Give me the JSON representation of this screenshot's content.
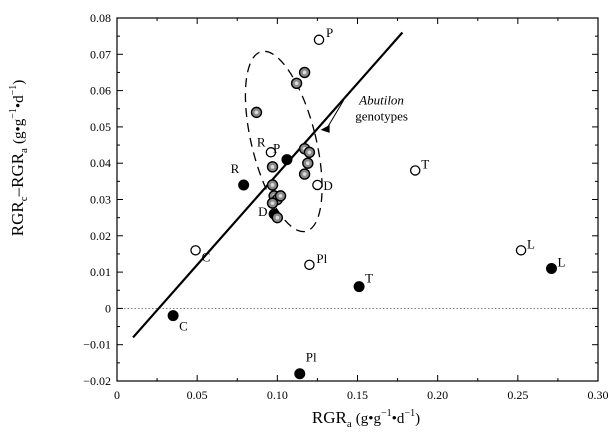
{
  "chart_data": {
    "type": "scatter",
    "xlabel": "RGR",
    "xlabel_sub": "a",
    "xlabel_units": "(g•g",
    "xlabel_units_sup": "−1",
    "xlabel_units_mid": "•d",
    "xlabel_units_sup2": "−1",
    "xlabel_units_end": ")",
    "ylabel_main": "RGR",
    "ylabel_sub1": "c",
    "ylabel_mid": "–RGR",
    "ylabel_sub2": "a",
    "ylabel_units": "(g•g",
    "ylabel_units_sup": "−1",
    "ylabel_units_mid": "•d",
    "ylabel_units_sup2": "−1",
    "ylabel_units_end": ")",
    "xlim": [
      0,
      0.3
    ],
    "ylim": [
      -0.02,
      0.08
    ],
    "x_ticks": [
      0,
      0.05,
      0.1,
      0.15,
      0.2,
      0.25,
      0.3
    ],
    "x_tick_labels": [
      "0",
      "0.05",
      "0.10",
      "0.15",
      "0.20",
      "0.25",
      "0.30"
    ],
    "y_ticks": [
      -0.02,
      -0.01,
      0,
      0.01,
      0.02,
      0.03,
      0.04,
      0.05,
      0.06,
      0.07,
      0.08
    ],
    "y_tick_labels": [
      "−0.02",
      "−0.01",
      "0",
      "0.01",
      "0.02",
      "0.03",
      "0.04",
      "0.05",
      "0.06",
      "0.07",
      "0.08"
    ],
    "zero_line": true,
    "regression_line": {
      "x": [
        0.01,
        0.178
      ],
      "y": [
        -0.008,
        0.076
      ]
    },
    "series": [
      {
        "marker": "open-circle",
        "points": [
          {
            "x": 0.049,
            "y": 0.016,
            "label": "C"
          },
          {
            "x": 0.096,
            "y": 0.043,
            "label": "R"
          },
          {
            "x": 0.126,
            "y": 0.074,
            "label": "P"
          },
          {
            "x": 0.125,
            "y": 0.034,
            "label": "D"
          },
          {
            "x": 0.12,
            "y": 0.012,
            "label": "Pl"
          },
          {
            "x": 0.186,
            "y": 0.038,
            "label": "T"
          },
          {
            "x": 0.252,
            "y": 0.016,
            "label": "L"
          }
        ]
      },
      {
        "marker": "filled-circle",
        "points": [
          {
            "x": 0.035,
            "y": -0.002,
            "label": "C"
          },
          {
            "x": 0.079,
            "y": 0.034,
            "label": "R"
          },
          {
            "x": 0.106,
            "y": 0.041,
            "label": "P"
          },
          {
            "x": 0.098,
            "y": 0.026,
            "label": "D"
          },
          {
            "x": 0.114,
            "y": -0.018,
            "label": "Pl"
          },
          {
            "x": 0.151,
            "y": 0.006,
            "label": "T"
          },
          {
            "x": 0.271,
            "y": 0.011,
            "label": "L"
          }
        ]
      },
      {
        "marker": "gray-circle",
        "points": [
          {
            "x": 0.087,
            "y": 0.054
          },
          {
            "x": 0.112,
            "y": 0.062
          },
          {
            "x": 0.117,
            "y": 0.065
          },
          {
            "x": 0.097,
            "y": 0.039
          },
          {
            "x": 0.117,
            "y": 0.044
          },
          {
            "x": 0.12,
            "y": 0.043
          },
          {
            "x": 0.119,
            "y": 0.04
          },
          {
            "x": 0.117,
            "y": 0.037
          },
          {
            "x": 0.097,
            "y": 0.034
          },
          {
            "x": 0.098,
            "y": 0.031
          },
          {
            "x": 0.1,
            "y": 0.03
          },
          {
            "x": 0.102,
            "y": 0.031
          },
          {
            "x": 0.097,
            "y": 0.029
          },
          {
            "x": 0.1,
            "y": 0.025
          }
        ]
      }
    ],
    "ellipse": {
      "cx": 0.104,
      "cy": 0.046,
      "rx": 0.02,
      "ry": 0.0255,
      "rotate_deg": -14
    },
    "annotation": {
      "text_italic": "Abutilon",
      "text": "genotypes",
      "text_x": 0.165,
      "text_y": 0.054,
      "arrow_to_x": 0.127,
      "arrow_to_y": 0.05
    }
  }
}
